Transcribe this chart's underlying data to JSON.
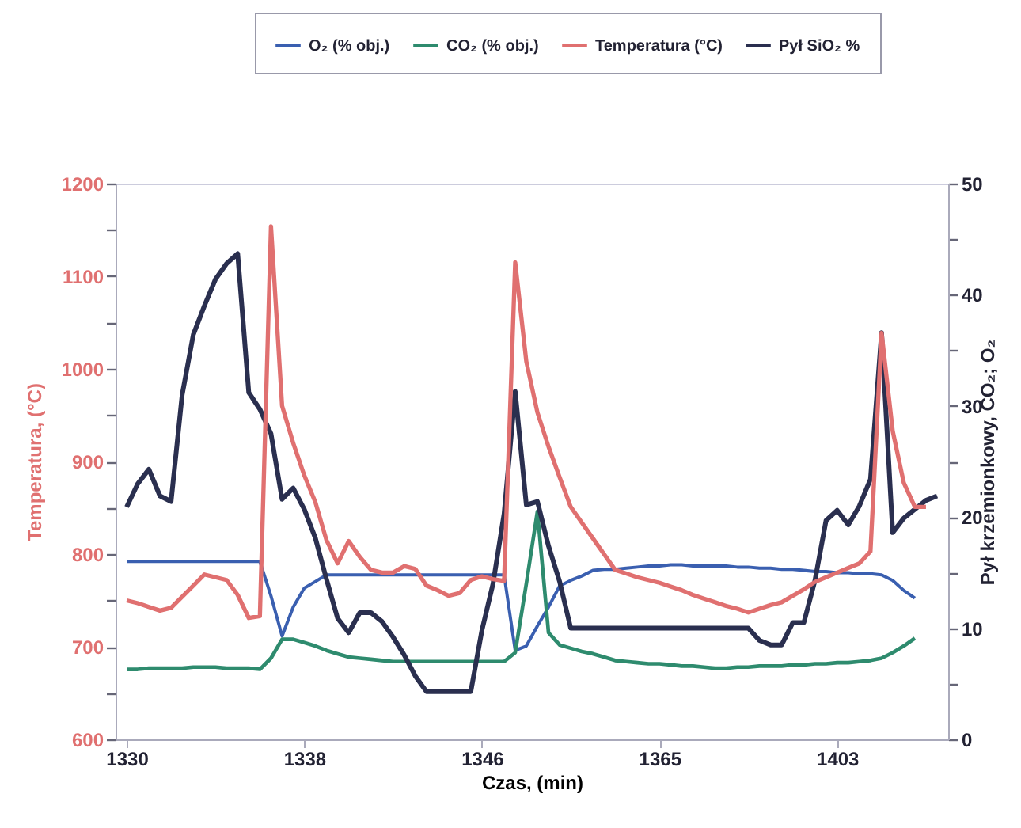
{
  "chart_data": {
    "type": "line",
    "xlabel": "Czas, (min)",
    "ylabel": "Temperatura, (°C)",
    "y2label": "Pył krzemionkowy, CO₂; O₂",
    "categories": [
      "1330",
      null,
      null,
      null,
      null,
      null,
      null,
      null,
      null,
      null,
      null,
      null,
      null,
      null,
      null,
      null,
      "1338",
      null,
      null,
      null,
      null,
      null,
      null,
      null,
      null,
      null,
      null,
      null,
      null,
      null,
      null,
      null,
      "1346",
      null,
      null,
      null,
      null,
      null,
      null,
      null,
      null,
      null,
      null,
      null,
      null,
      null,
      null,
      null,
      "1365",
      null,
      null,
      null,
      null,
      null,
      null,
      null,
      null,
      null,
      null,
      null,
      null,
      null,
      null,
      null,
      "1403",
      null,
      null,
      null,
      null,
      null,
      null,
      null,
      null,
      null
    ],
    "ylim": [
      600,
      1200
    ],
    "yticks": [
      600,
      {
        "value": 650,
        "label": null
      },
      700,
      {
        "value": 750,
        "label": null
      },
      800,
      {
        "value": 850,
        "label": null
      },
      900,
      {
        "value": 950,
        "label": null
      },
      1000,
      {
        "value": 1050,
        "label": null
      },
      1100,
      {
        "value": 1150,
        "label": null
      },
      1200
    ],
    "y2lim": [
      0,
      50
    ],
    "y2ticks": [
      0,
      {
        "value": 5,
        "label": null
      },
      10,
      {
        "value": 15,
        "label": null
      },
      20,
      {
        "value": 25,
        "label": null
      },
      30,
      {
        "value": 35,
        "label": null
      },
      40,
      {
        "value": 45,
        "label": null
      },
      50
    ],
    "legend": "top",
    "grid": false,
    "line_style": "solid",
    "marker": "none",
    "series": [
      {
        "name": "O₂ (% obj.)",
        "color": "#3a5fb0",
        "axis": "y2",
        "values": [
          16,
          16,
          16,
          16,
          16,
          16,
          16,
          16,
          16,
          16,
          16,
          16,
          16,
          12.9,
          9.3,
          11.9,
          13.6,
          14.2,
          14.8,
          14.8,
          14.8,
          14.8,
          14.8,
          14.8,
          14.8,
          14.8,
          14.8,
          14.8,
          14.8,
          14.8,
          14.8,
          14.8,
          14.8,
          14.8,
          14.8,
          8,
          8.4,
          10.2,
          11.9,
          13.8,
          14.3,
          14.7,
          15.2,
          15.3,
          15.3,
          15.4,
          15.5,
          15.6,
          15.6,
          15.7,
          15.7,
          15.6,
          15.6,
          15.6,
          15.6,
          15.5,
          15.5,
          15.4,
          15.4,
          15.3,
          15.3,
          15.2,
          15.1,
          15.1,
          15.0,
          15.0,
          14.9,
          14.9,
          14.8,
          14.3,
          13.4,
          12.7,
          null,
          null
        ]
      },
      {
        "name": "CO₂ (% obj.)",
        "color": "#2e8b6e",
        "axis": "y2",
        "values": [
          6.3,
          6.3,
          6.4,
          6.4,
          6.4,
          6.4,
          6.5,
          6.5,
          6.5,
          6.4,
          6.4,
          6.4,
          6.3,
          7.3,
          9.0,
          9.0,
          8.7,
          8.4,
          8.0,
          7.7,
          7.4,
          7.3,
          7.2,
          7.1,
          7.0,
          7.0,
          7.0,
          7.0,
          7.0,
          7.0,
          7.0,
          7.0,
          7.0,
          7.0,
          7.0,
          7.8,
          14.0,
          20.5,
          9.6,
          8.5,
          8.2,
          7.9,
          7.7,
          7.4,
          7.1,
          7.0,
          6.9,
          6.8,
          6.8,
          6.7,
          6.6,
          6.6,
          6.5,
          6.4,
          6.4,
          6.5,
          6.5,
          6.6,
          6.6,
          6.6,
          6.7,
          6.7,
          6.8,
          6.8,
          6.9,
          6.9,
          7.0,
          7.1,
          7.3,
          7.8,
          8.4,
          9.1,
          null,
          null
        ]
      },
      {
        "name": "Temperatura (°C)",
        "color": "#e07070",
        "values": [
          750,
          747,
          743,
          739,
          742,
          754,
          766,
          778,
          775,
          772,
          756,
          731,
          733,
          1154,
          960,
          920,
          885,
          856,
          815,
          790,
          814,
          797,
          783,
          780,
          780,
          787,
          784,
          766,
          761,
          755,
          758,
          772,
          776,
          773,
          771,
          1115,
          1008,
          953,
          916,
          883,
          851,
          834,
          817,
          800,
          783,
          779,
          775,
          772,
          769,
          765,
          761,
          756,
          752,
          748,
          744,
          741,
          737,
          741,
          745,
          748,
          755,
          762,
          770,
          775,
          780,
          785,
          790,
          803,
          1039,
          933,
          877,
          851,
          851,
          null
        ]
      },
      {
        "name": "Pył SiO₂ %",
        "color": "#2a2f4f",
        "axis": "y2",
        "values": [
          20.9,
          23,
          24.3,
          21.9,
          21.4,
          31,
          36.4,
          39.0,
          41.4,
          42.8,
          43.7,
          31.2,
          29.7,
          27.5,
          21.6,
          22.6,
          20.7,
          18.1,
          14.4,
          10.9,
          9.6,
          11.4,
          11.4,
          10.6,
          9.2,
          7.6,
          5.7,
          4.3,
          4.3,
          4.3,
          4.3,
          4.3,
          9.8,
          14.0,
          20.3,
          31.3,
          21.1,
          21.4,
          17.4,
          14.2,
          10.0,
          10.0,
          10.0,
          10.0,
          10.0,
          10.0,
          10.0,
          10.0,
          10.0,
          10.0,
          10.0,
          10.0,
          10.0,
          10.0,
          10.0,
          10.0,
          10.0,
          8.9,
          8.5,
          8.5,
          10.5,
          10.5,
          14.3,
          19.7,
          20.6,
          19.3,
          21.0,
          23.4,
          36.6,
          18.6,
          19.9,
          20.7,
          21.5,
          21.9
        ]
      }
    ]
  }
}
